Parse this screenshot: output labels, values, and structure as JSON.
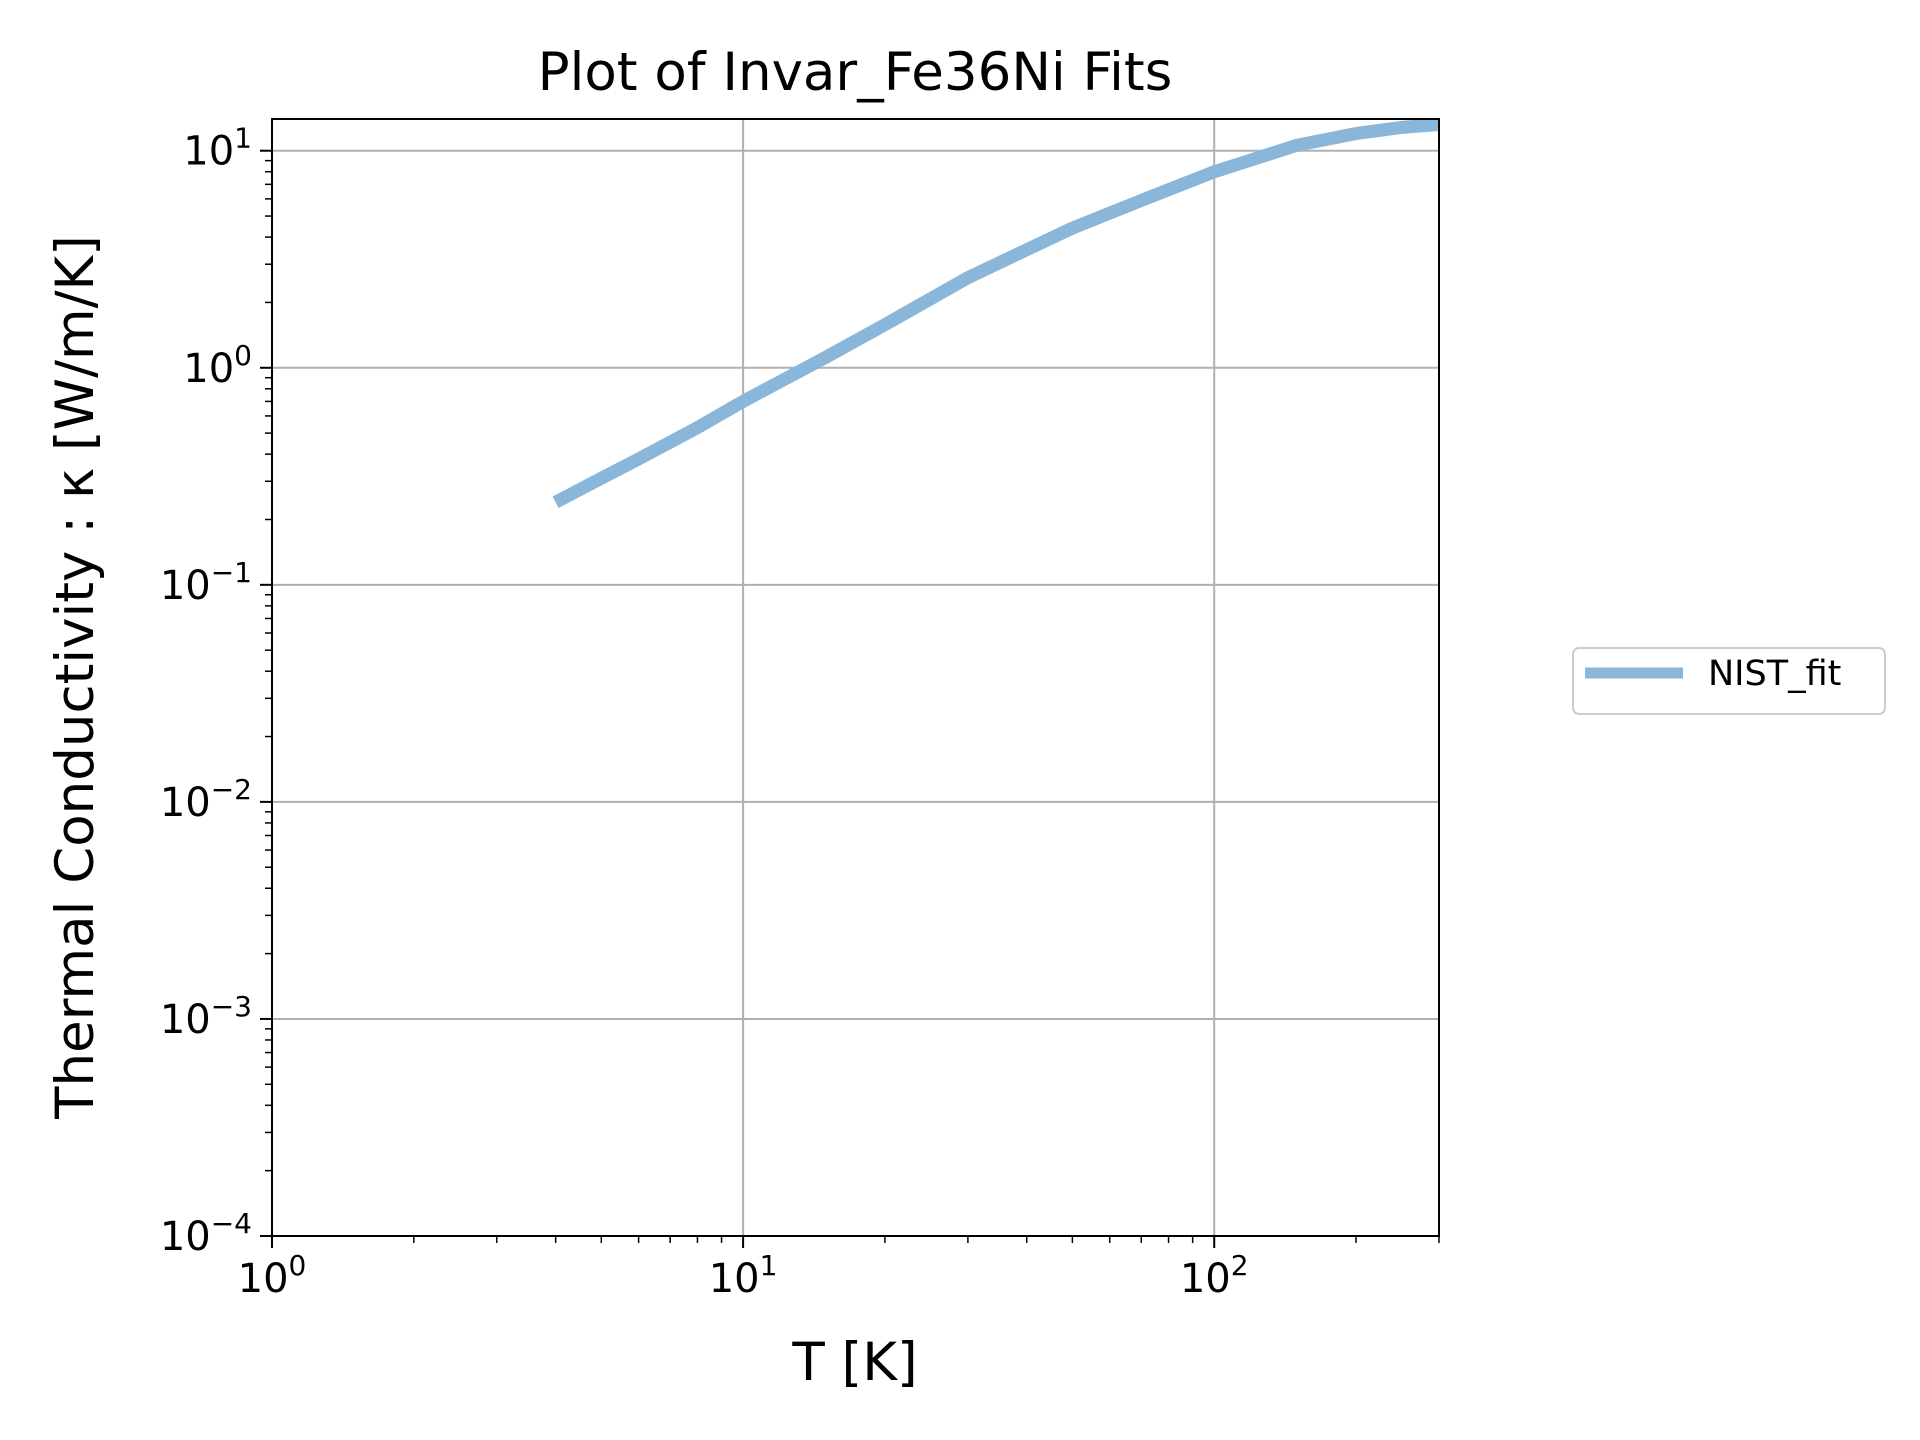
{
  "chart_data": {
    "type": "line",
    "title": "Plot of Invar_Fe36Ni Fits",
    "xlabel": "T [K]",
    "ylabel": "Thermal Conductivity : κ [W/m/K]",
    "xscale": "log",
    "yscale": "log",
    "xlim": [
      1,
      300
    ],
    "ylim": [
      0.0001,
      14
    ],
    "grid": true,
    "legend": "outside right",
    "x_ticks": [
      {
        "value": 1,
        "base": "10",
        "exp": "0"
      },
      {
        "value": 10,
        "base": "10",
        "exp": "1"
      },
      {
        "value": 100,
        "base": "10",
        "exp": "2"
      }
    ],
    "y_ticks": [
      {
        "value": 0.0001,
        "base": "10",
        "exp": "−4"
      },
      {
        "value": 0.001,
        "base": "10",
        "exp": "−3"
      },
      {
        "value": 0.01,
        "base": "10",
        "exp": "−2"
      },
      {
        "value": 0.1,
        "base": "10",
        "exp": "−1"
      },
      {
        "value": 1,
        "base": "10",
        "exp": "0"
      },
      {
        "value": 10,
        "base": "10",
        "exp": "1"
      }
    ],
    "series": [
      {
        "name": "NIST_fit",
        "color": "#8ab6d9",
        "x": [
          4,
          5,
          6,
          8,
          10,
          15,
          20,
          30,
          40,
          50,
          70,
          100,
          150,
          200,
          250,
          300
        ],
        "y": [
          0.24,
          0.31,
          0.38,
          0.53,
          0.7,
          1.12,
          1.58,
          2.6,
          3.5,
          4.4,
          5.9,
          8.0,
          10.6,
          12.0,
          12.8,
          13.2
        ]
      }
    ]
  }
}
